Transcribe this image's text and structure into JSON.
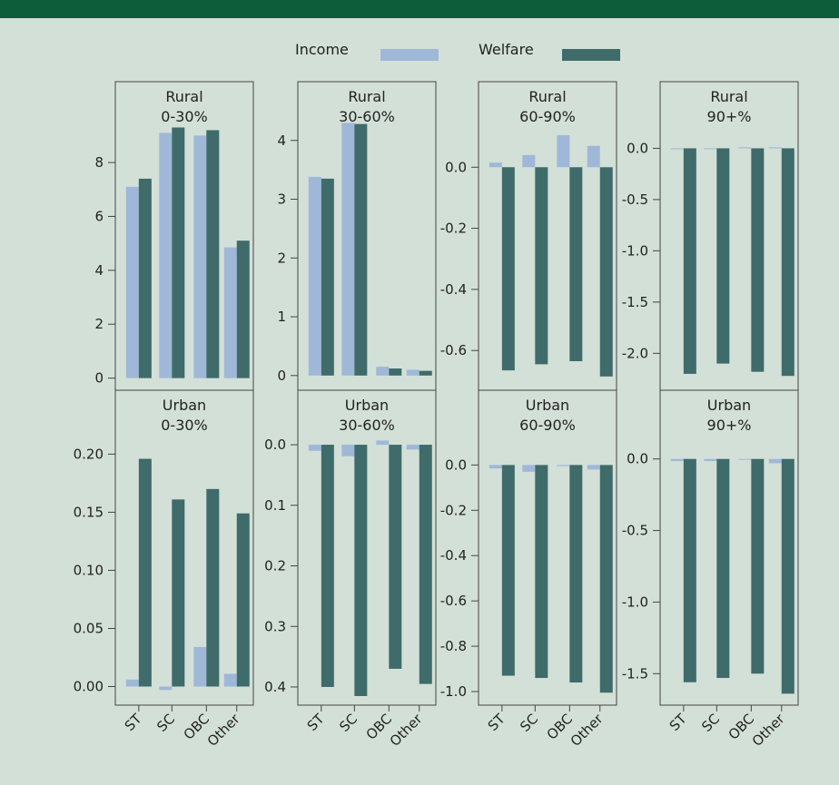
{
  "colors": {
    "background": "#d3e0d7",
    "top_bar": "#0d5c3a",
    "income": "#9fb8d8",
    "welfare": "#3f6b6a",
    "frame": "#444444",
    "text": "#222222"
  },
  "legend": {
    "entries": [
      {
        "label": "Income",
        "color_key": "income"
      },
      {
        "label": "Welfare",
        "color_key": "welfare"
      }
    ],
    "placement": "top-center"
  },
  "chart_data": [
    {
      "type": "bar",
      "title": [
        "Rural",
        "0-30%"
      ],
      "categories": [
        "ST",
        "SC",
        "OBC",
        "Other"
      ],
      "series": [
        {
          "name": "Income",
          "values": [
            7.1,
            9.1,
            9.0,
            4.85
          ]
        },
        {
          "name": "Welfare",
          "values": [
            7.4,
            9.3,
            9.2,
            5.1
          ]
        }
      ],
      "ylim": [
        -0.45,
        11.0
      ],
      "yticks": [
        0,
        2,
        4,
        6,
        8
      ],
      "ytick_labels": [
        "0",
        "2",
        "4",
        "6",
        "8"
      ]
    },
    {
      "type": "bar",
      "title": [
        "Rural",
        "30-60%"
      ],
      "categories": [
        "ST",
        "SC",
        "OBC",
        "Other"
      ],
      "series": [
        {
          "name": "Income",
          "values": [
            3.38,
            4.3,
            0.15,
            0.1
          ]
        },
        {
          "name": "Welfare",
          "values": [
            3.35,
            4.28,
            0.12,
            0.08
          ]
        }
      ],
      "ylim": [
        -0.25,
        5.0
      ],
      "yticks": [
        0,
        1,
        2,
        3,
        4
      ],
      "ytick_labels": [
        "0",
        "1",
        "2",
        "3",
        "4"
      ]
    },
    {
      "type": "bar",
      "title": [
        "Rural",
        "60-90%"
      ],
      "categories": [
        "ST",
        "SC",
        "OBC",
        "Other"
      ],
      "series": [
        {
          "name": "Income",
          "values": [
            0.015,
            0.04,
            0.105,
            0.07
          ]
        },
        {
          "name": "Welfare",
          "values": [
            -0.665,
            -0.645,
            -0.635,
            -0.685
          ]
        }
      ],
      "ylim": [
        -0.73,
        0.28
      ],
      "yticks": [
        0.0,
        -0.2,
        -0.4,
        -0.6
      ],
      "ytick_labels": [
        "0.0",
        "-0.2",
        "-0.4",
        "-0.6"
      ]
    },
    {
      "type": "bar",
      "title": [
        "Rural",
        "90+%"
      ],
      "categories": [
        "ST",
        "SC",
        "OBC",
        "Other"
      ],
      "series": [
        {
          "name": "Income",
          "values": [
            0.0,
            0.0,
            0.01,
            0.01
          ]
        },
        {
          "name": "Welfare",
          "values": [
            -2.2,
            -2.1,
            -2.18,
            -2.22
          ]
        }
      ],
      "ylim": [
        -2.36,
        0.65
      ],
      "yticks": [
        0.0,
        -0.5,
        -1.0,
        -1.5,
        -2.0
      ],
      "ytick_labels": [
        "0.0",
        "-0.5",
        "-1.0",
        "-1.5",
        "-2.0"
      ]
    },
    {
      "type": "bar",
      "title": [
        "Urban",
        "0-30%"
      ],
      "categories": [
        "ST",
        "SC",
        "OBC",
        "Other"
      ],
      "series": [
        {
          "name": "Income",
          "values": [
            0.006,
            -0.003,
            0.034,
            0.011
          ]
        },
        {
          "name": "Welfare",
          "values": [
            0.196,
            0.161,
            0.17,
            0.149
          ]
        }
      ],
      "ylim": [
        -0.016,
        0.255
      ],
      "yticks": [
        0.0,
        0.05,
        0.1,
        0.15,
        0.2
      ],
      "ytick_labels": [
        "0.00",
        "0.05",
        "0.10",
        "0.15",
        "0.20"
      ]
    },
    {
      "type": "bar",
      "title": [
        "Urban",
        "30-60%"
      ],
      "categories": [
        "ST",
        "SC",
        "OBC",
        "Other"
      ],
      "series": [
        {
          "name": "Income",
          "values": [
            0.01,
            0.019,
            -0.007,
            0.008
          ]
        },
        {
          "name": "Welfare",
          "values": [
            0.4,
            0.415,
            0.37,
            0.395
          ]
        }
      ],
      "reversed": true,
      "ylim": [
        -0.09,
        0.43
      ],
      "yticks": [
        0.0,
        0.1,
        0.2,
        0.3,
        0.4
      ],
      "ytick_labels": [
        "0.0",
        "0.1",
        "0.2",
        "0.3",
        "0.4"
      ]
    },
    {
      "type": "bar",
      "title": [
        "Urban",
        "60-90%"
      ],
      "categories": [
        "ST",
        "SC",
        "OBC",
        "Other"
      ],
      "series": [
        {
          "name": "Income",
          "values": [
            -0.015,
            -0.03,
            -0.005,
            -0.02
          ]
        },
        {
          "name": "Welfare",
          "values": [
            -0.93,
            -0.94,
            -0.96,
            -1.005
          ]
        }
      ],
      "ylim": [
        -1.06,
        0.33
      ],
      "yticks": [
        0.0,
        -0.2,
        -0.4,
        -0.6,
        -0.8,
        -1.0
      ],
      "ytick_labels": [
        "0.0",
        "-0.2",
        "-0.4",
        "-0.6",
        "-0.8",
        "-1.0"
      ]
    },
    {
      "type": "bar",
      "title": [
        "Urban",
        "90+%"
      ],
      "categories": [
        "ST",
        "SC",
        "OBC",
        "Other"
      ],
      "series": [
        {
          "name": "Income",
          "values": [
            -0.015,
            -0.015,
            -0.005,
            -0.03
          ]
        },
        {
          "name": "Welfare",
          "values": [
            -1.56,
            -1.53,
            -1.5,
            -1.64
          ]
        }
      ],
      "ylim": [
        -1.72,
        0.48
      ],
      "yticks": [
        0.0,
        -0.5,
        -1.0,
        -1.5
      ],
      "ytick_labels": [
        "0.0",
        "-0.5",
        "-1.0",
        "-1.5"
      ]
    }
  ]
}
